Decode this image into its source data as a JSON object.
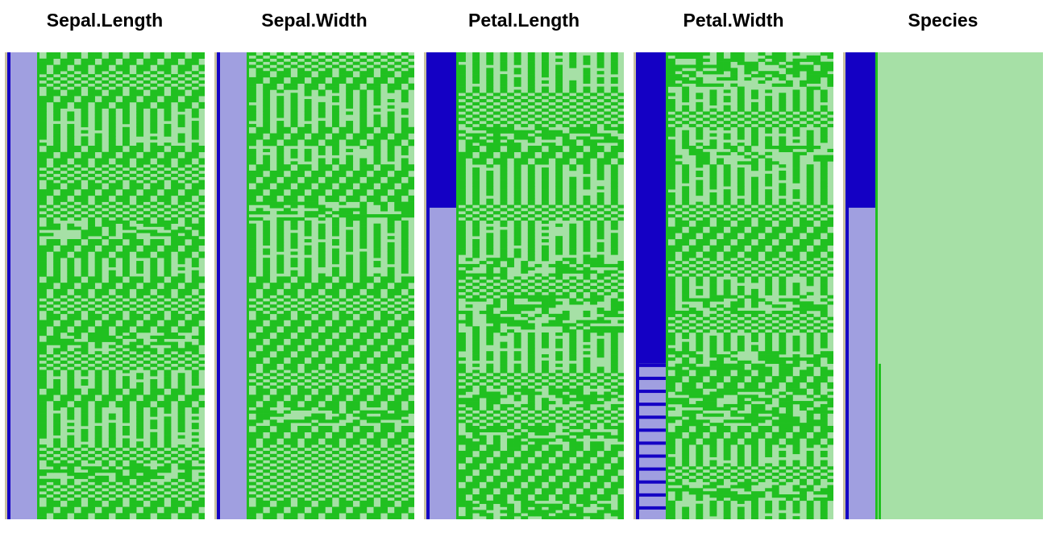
{
  "chart_data": {
    "type": "heatmap",
    "description_note": "",
    "panels": [
      {
        "title": "Sepal.Length",
        "sorted_by": "",
        "index_band": "uniform"
      },
      {
        "title": "Sepal.Width",
        "index_band": "uniform"
      },
      {
        "title": "Petal.Length",
        "index_band": "split"
      },
      {
        "title": "Petal.Width",
        "index_band": "split"
      },
      {
        "title": "Species",
        "index_band": "split"
      }
    ],
    "panel_splits": [
      null,
      null,
      0.333,
      0.667,
      0.333
    ],
    "colors": {
      "dark_blue": "#1400c4",
      "light_blue": "#a09fe0",
      "green": "#20c020",
      "light_green": "#a6e0a6",
      "edge": "#c8c0a0"
    }
  }
}
